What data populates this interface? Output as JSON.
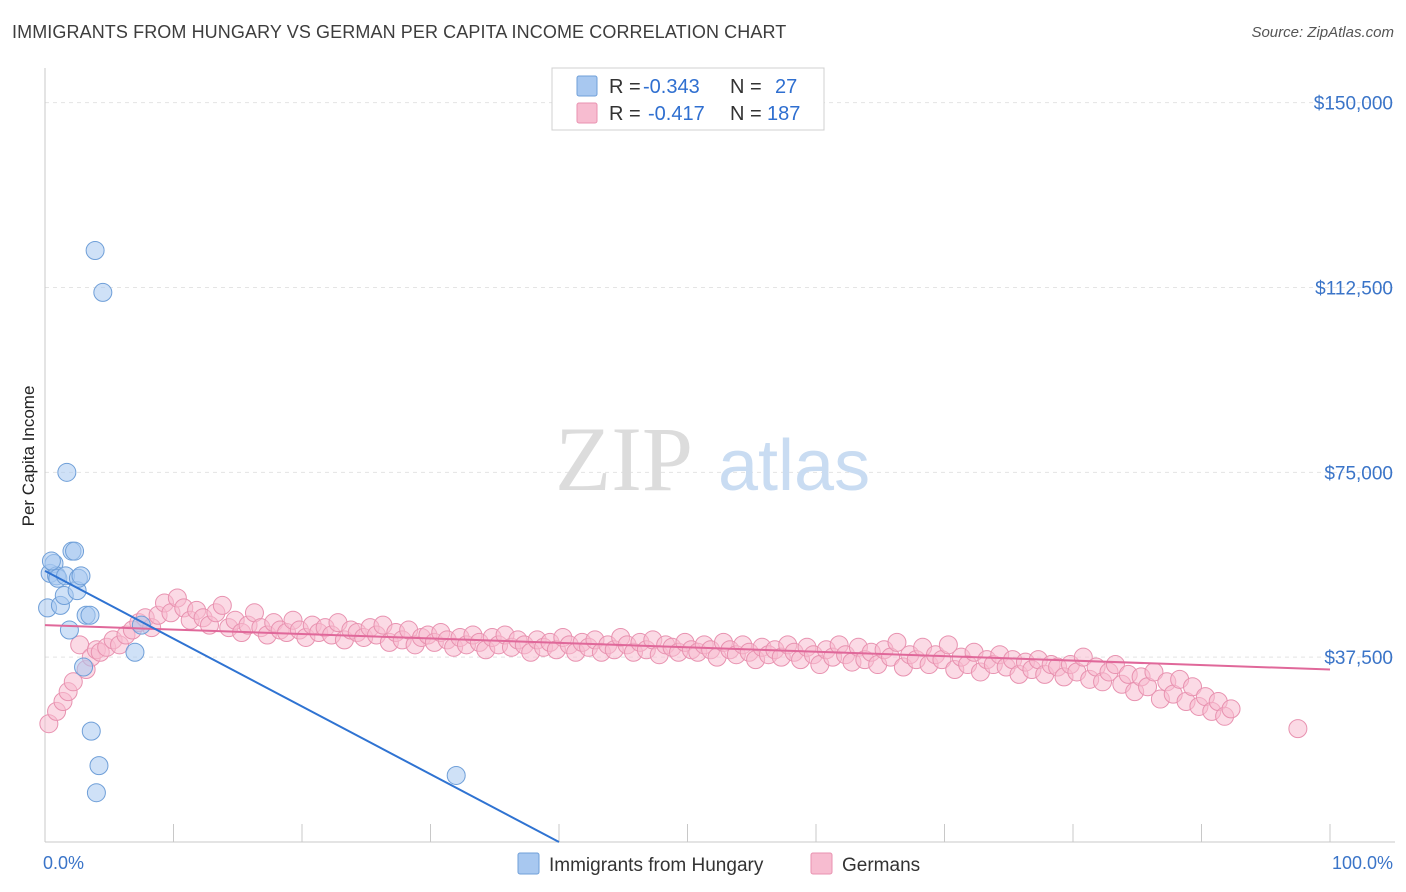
{
  "title": "IMMIGRANTS FROM HUNGARY VS GERMAN PER CAPITA INCOME CORRELATION CHART",
  "source": "Source: ZipAtlas.com",
  "watermark": {
    "zip": "ZIP",
    "atlas": "atlas"
  },
  "legend": {
    "rows": [
      {
        "r_label": "R = ",
        "r_value": "-0.343",
        "n_label": "N = ",
        "n_value": "27",
        "color": "#a8c8f0",
        "stroke": "#6f9fd8"
      },
      {
        "r_label": "R = ",
        "r_value": "-0.417",
        "n_label": "N = ",
        "n_value": "187",
        "color": "#f7bcd0",
        "stroke": "#e892b0"
      }
    ]
  },
  "bottom_legend": [
    {
      "label": "Immigrants from Hungary",
      "color": "#a8c8f0",
      "stroke": "#6f9fd8"
    },
    {
      "label": "Germans",
      "color": "#f7bcd0",
      "stroke": "#e892b0"
    }
  ],
  "chart_data": {
    "type": "scatter",
    "title": "IMMIGRANTS FROM HUNGARY VS GERMAN PER CAPITA INCOME CORRELATION CHART",
    "xlabel": "",
    "ylabel": "Per Capita Income",
    "xlim": [
      0,
      100
    ],
    "ylim": [
      0,
      155000
    ],
    "x_tick_labels": [
      "0.0%",
      "100.0%"
    ],
    "y_ticks": [
      37500,
      75000,
      112500,
      150000
    ],
    "y_tick_labels": [
      "$37,500",
      "$75,000",
      "$112,500",
      "$150,000"
    ],
    "grid": true,
    "legend_position": "top-center",
    "colors": {
      "hungary": "#6f9fd8",
      "hungary_line": "#2f73d2",
      "germans": "#e892b0",
      "germans_line": "#e0689a",
      "axis_text": "#3a74c8"
    },
    "series": [
      {
        "name": "Immigrants from Hungary",
        "points": [
          [
            0.2,
            47500
          ],
          [
            0.4,
            54500
          ],
          [
            0.7,
            56500
          ],
          [
            0.9,
            54000
          ],
          [
            1.0,
            53500
          ],
          [
            1.2,
            48000
          ],
          [
            1.5,
            50000
          ],
          [
            1.6,
            54000
          ],
          [
            1.7,
            75000
          ],
          [
            1.9,
            43000
          ],
          [
            2.1,
            59000
          ],
          [
            2.3,
            59000
          ],
          [
            2.5,
            51000
          ],
          [
            2.6,
            53500
          ],
          [
            2.8,
            54000
          ],
          [
            3.0,
            35500
          ],
          [
            3.2,
            46000
          ],
          [
            3.5,
            46000
          ],
          [
            3.6,
            22500
          ],
          [
            4.0,
            10000
          ],
          [
            4.2,
            15500
          ],
          [
            3.9,
            120000
          ],
          [
            4.5,
            111500
          ],
          [
            7.0,
            38500
          ],
          [
            7.5,
            44000
          ],
          [
            0.5,
            57000
          ],
          [
            32.0,
            13500
          ]
        ],
        "trend": {
          "x": [
            0,
            40
          ],
          "y": [
            55000,
            0
          ]
        }
      },
      {
        "name": "Germans",
        "points": [
          [
            0.3,
            24000
          ],
          [
            0.9,
            26500
          ],
          [
            1.4,
            28500
          ],
          [
            1.8,
            30500
          ],
          [
            2.2,
            32500
          ],
          [
            2.7,
            40000
          ],
          [
            3.2,
            35000
          ],
          [
            3.6,
            37500
          ],
          [
            4.0,
            39000
          ],
          [
            4.3,
            38500
          ],
          [
            4.8,
            39500
          ],
          [
            5.3,
            41000
          ],
          [
            5.8,
            40000
          ],
          [
            6.3,
            42000
          ],
          [
            6.8,
            43000
          ],
          [
            7.3,
            44500
          ],
          [
            7.8,
            45500
          ],
          [
            8.3,
            43500
          ],
          [
            8.8,
            46000
          ],
          [
            9.3,
            48500
          ],
          [
            9.8,
            46500
          ],
          [
            10.3,
            49500
          ],
          [
            10.8,
            47500
          ],
          [
            11.3,
            45000
          ],
          [
            11.8,
            47000
          ],
          [
            12.3,
            45500
          ],
          [
            12.8,
            44000
          ],
          [
            13.3,
            46500
          ],
          [
            13.8,
            48000
          ],
          [
            14.3,
            43500
          ],
          [
            14.8,
            45000
          ],
          [
            15.3,
            42500
          ],
          [
            15.8,
            44000
          ],
          [
            16.3,
            46500
          ],
          [
            16.8,
            43500
          ],
          [
            17.3,
            42000
          ],
          [
            17.8,
            44500
          ],
          [
            18.3,
            43000
          ],
          [
            18.8,
            42500
          ],
          [
            19.3,
            45000
          ],
          [
            19.8,
            43000
          ],
          [
            20.3,
            41500
          ],
          [
            20.8,
            44000
          ],
          [
            21.3,
            42500
          ],
          [
            21.8,
            43500
          ],
          [
            22.3,
            42000
          ],
          [
            22.8,
            44500
          ],
          [
            23.3,
            41000
          ],
          [
            23.8,
            43000
          ],
          [
            24.3,
            42500
          ],
          [
            24.8,
            41500
          ],
          [
            25.3,
            43500
          ],
          [
            25.8,
            42000
          ],
          [
            26.3,
            44000
          ],
          [
            26.8,
            40500
          ],
          [
            27.3,
            42500
          ],
          [
            27.8,
            41000
          ],
          [
            28.3,
            43000
          ],
          [
            28.8,
            40000
          ],
          [
            29.3,
            41500
          ],
          [
            29.8,
            42000
          ],
          [
            30.3,
            40500
          ],
          [
            30.8,
            42500
          ],
          [
            31.3,
            41000
          ],
          [
            31.8,
            39500
          ],
          [
            32.3,
            41500
          ],
          [
            32.8,
            40000
          ],
          [
            33.3,
            42000
          ],
          [
            33.8,
            40500
          ],
          [
            34.3,
            39000
          ],
          [
            34.8,
            41500
          ],
          [
            35.3,
            40000
          ],
          [
            35.8,
            42000
          ],
          [
            36.3,
            39500
          ],
          [
            36.8,
            41000
          ],
          [
            37.3,
            40000
          ],
          [
            37.8,
            38500
          ],
          [
            38.3,
            41000
          ],
          [
            38.8,
            39500
          ],
          [
            39.3,
            40500
          ],
          [
            39.8,
            39000
          ],
          [
            40.3,
            41500
          ],
          [
            40.8,
            40000
          ],
          [
            41.3,
            38500
          ],
          [
            41.8,
            40500
          ],
          [
            42.3,
            39500
          ],
          [
            42.8,
            41000
          ],
          [
            43.3,
            38500
          ],
          [
            43.8,
            40000
          ],
          [
            44.3,
            39000
          ],
          [
            44.8,
            41500
          ],
          [
            45.3,
            40000
          ],
          [
            45.8,
            38500
          ],
          [
            46.3,
            40500
          ],
          [
            46.8,
            39000
          ],
          [
            47.3,
            41000
          ],
          [
            47.8,
            38000
          ],
          [
            48.3,
            40000
          ],
          [
            48.8,
            39500
          ],
          [
            49.3,
            38500
          ],
          [
            49.8,
            40500
          ],
          [
            50.3,
            39000
          ],
          [
            50.8,
            38500
          ],
          [
            51.3,
            40000
          ],
          [
            51.8,
            39000
          ],
          [
            52.3,
            37500
          ],
          [
            52.8,
            40500
          ],
          [
            53.3,
            39000
          ],
          [
            53.8,
            38000
          ],
          [
            54.3,
            40000
          ],
          [
            54.8,
            38500
          ],
          [
            55.3,
            37000
          ],
          [
            55.8,
            39500
          ],
          [
            56.3,
            38000
          ],
          [
            56.8,
            39000
          ],
          [
            57.3,
            37500
          ],
          [
            57.8,
            40000
          ],
          [
            58.3,
            38500
          ],
          [
            58.8,
            37000
          ],
          [
            59.3,
            39500
          ],
          [
            59.8,
            38000
          ],
          [
            60.3,
            36000
          ],
          [
            60.8,
            39000
          ],
          [
            61.3,
            37500
          ],
          [
            61.8,
            40000
          ],
          [
            62.3,
            38000
          ],
          [
            62.8,
            36500
          ],
          [
            63.3,
            39500
          ],
          [
            63.8,
            37000
          ],
          [
            64.3,
            38500
          ],
          [
            64.8,
            36000
          ],
          [
            65.3,
            39000
          ],
          [
            65.8,
            37500
          ],
          [
            66.3,
            40500
          ],
          [
            66.8,
            35500
          ],
          [
            67.3,
            38000
          ],
          [
            67.8,
            37000
          ],
          [
            68.3,
            39500
          ],
          [
            68.8,
            36000
          ],
          [
            69.3,
            38000
          ],
          [
            69.8,
            37000
          ],
          [
            70.3,
            40000
          ],
          [
            70.8,
            35000
          ],
          [
            71.3,
            37500
          ],
          [
            71.8,
            36000
          ],
          [
            72.3,
            38500
          ],
          [
            72.8,
            34500
          ],
          [
            73.3,
            37000
          ],
          [
            73.8,
            36000
          ],
          [
            74.3,
            38000
          ],
          [
            74.8,
            35500
          ],
          [
            75.3,
            37000
          ],
          [
            75.8,
            34000
          ],
          [
            76.3,
            36500
          ],
          [
            76.8,
            35000
          ],
          [
            77.3,
            37000
          ],
          [
            77.8,
            34000
          ],
          [
            78.3,
            36000
          ],
          [
            78.8,
            35500
          ],
          [
            79.3,
            33500
          ],
          [
            79.8,
            36000
          ],
          [
            80.3,
            34500
          ],
          [
            80.8,
            37500
          ],
          [
            81.3,
            33000
          ],
          [
            81.8,
            35500
          ],
          [
            82.3,
            32500
          ],
          [
            82.8,
            34500
          ],
          [
            83.3,
            36000
          ],
          [
            83.8,
            32000
          ],
          [
            84.3,
            34000
          ],
          [
            84.8,
            30500
          ],
          [
            85.3,
            33500
          ],
          [
            85.8,
            31500
          ],
          [
            86.3,
            34500
          ],
          [
            86.8,
            29000
          ],
          [
            87.3,
            32500
          ],
          [
            87.8,
            30000
          ],
          [
            88.3,
            33000
          ],
          [
            88.8,
            28500
          ],
          [
            89.3,
            31500
          ],
          [
            89.8,
            27500
          ],
          [
            90.3,
            29500
          ],
          [
            90.8,
            26500
          ],
          [
            91.3,
            28500
          ],
          [
            91.8,
            25500
          ],
          [
            92.3,
            27000
          ],
          [
            97.5,
            23000
          ]
        ],
        "trend": {
          "x": [
            0,
            100
          ],
          "y": [
            44000,
            35000
          ]
        }
      }
    ]
  }
}
